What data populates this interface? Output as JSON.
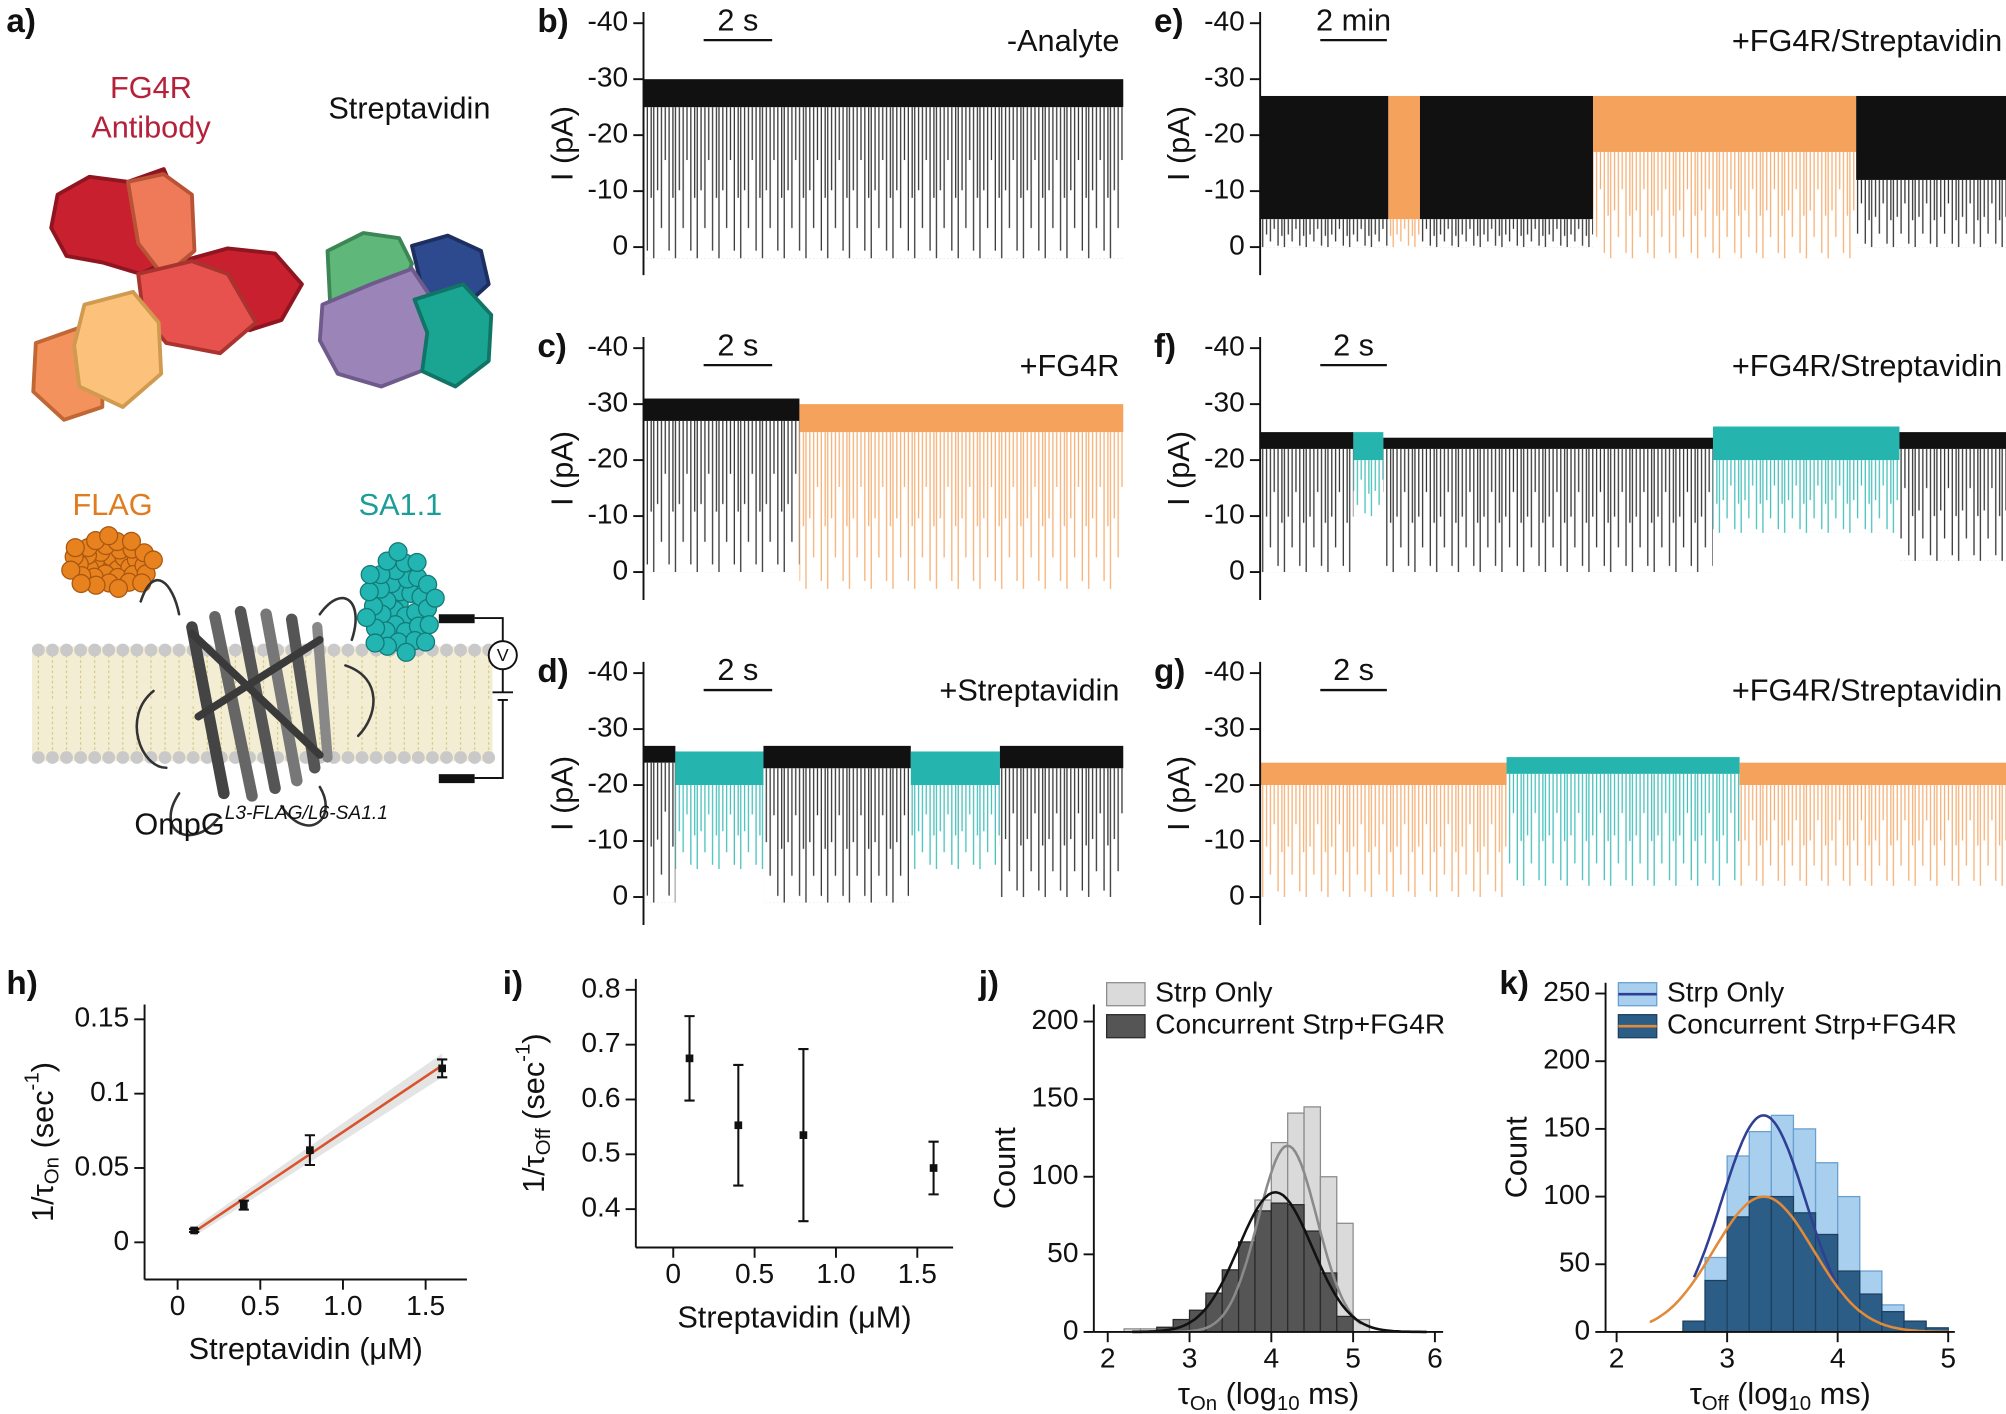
{
  "diagram": {
    "panel": "a)",
    "antibody_name": "FG4R",
    "antibody_label": "Antibody",
    "streptavidin": "Streptavidin",
    "flag": "FLAG",
    "sa": "SA1.1",
    "protein": "OmpG",
    "protein_sup": "L3-FLAG/L6-SA1.1",
    "voltage": "V"
  },
  "chart_data": [
    {
      "type": "trace",
      "panel": "b)",
      "label": "-Analyte",
      "ylabel": "I (pA)",
      "ylim": [
        5,
        -42
      ],
      "yticks": [
        -40,
        -30,
        -20,
        -10,
        0
      ],
      "xlim": [
        0,
        14
      ],
      "scale_bar": {
        "value": 2,
        "label": "2 s"
      },
      "segments": [
        {
          "color": "#111111",
          "x": [
            0,
            14
          ],
          "band": [
            -30,
            -25
          ],
          "deep": 2
        }
      ]
    },
    {
      "type": "trace",
      "panel": "c)",
      "label": "+FG4R",
      "ylabel": "I (pA)",
      "ylim": [
        5,
        -42
      ],
      "yticks": [
        -40,
        -30,
        -20,
        -10,
        0
      ],
      "xlim": [
        0,
        14
      ],
      "scale_bar": {
        "value": 2,
        "label": "2 s"
      },
      "segments": [
        {
          "color": "#111111",
          "x": [
            0,
            4.55
          ],
          "band": [
            -31,
            -27
          ],
          "deep": 0
        },
        {
          "color": "#f5a25d",
          "x": [
            4.55,
            14
          ],
          "band": [
            -30,
            -25
          ],
          "deep": 3
        }
      ]
    },
    {
      "type": "trace",
      "panel": "d)",
      "label": "+Streptavidin",
      "ylabel": "I (pA)",
      "ylim": [
        5,
        -42
      ],
      "yticks": [
        -40,
        -30,
        -20,
        -10,
        0
      ],
      "xlim": [
        0,
        14
      ],
      "scale_bar": {
        "value": 2,
        "label": "2 s"
      },
      "segments": [
        {
          "color": "#111111",
          "x": [
            0,
            0.93
          ],
          "band": [
            -27,
            -24
          ],
          "deep": 1
        },
        {
          "color": "#26b5ae",
          "x": [
            0.93,
            3.5
          ],
          "band": [
            -26,
            -20
          ],
          "deep": -5
        },
        {
          "color": "#111111",
          "x": [
            3.5,
            7.8
          ],
          "band": [
            -27,
            -23
          ],
          "deep": 1
        },
        {
          "color": "#26b5ae",
          "x": [
            7.8,
            10.4
          ],
          "band": [
            -26,
            -20
          ],
          "deep": -5
        },
        {
          "color": "#111111",
          "x": [
            10.4,
            14
          ],
          "band": [
            -27,
            -23
          ],
          "deep": 0
        }
      ]
    },
    {
      "type": "trace",
      "panel": "e)",
      "label": "+FG4R/Streptavidin",
      "ylabel": "I (pA)",
      "ylim": [
        5,
        -42
      ],
      "yticks": [
        -40,
        -30,
        -20,
        -10,
        0
      ],
      "xlim": [
        0,
        22.4
      ],
      "scale_bar": {
        "value": 2,
        "label": "2 min"
      },
      "segments": [
        {
          "color": "#111111",
          "x": [
            0,
            3.85
          ],
          "band": [
            -27,
            -5
          ],
          "deep": 0
        },
        {
          "color": "#f5a25d",
          "x": [
            3.85,
            4.8
          ],
          "band": [
            -27,
            -5
          ],
          "deep": 0
        },
        {
          "color": "#111111",
          "x": [
            4.8,
            10
          ],
          "band": [
            -27,
            -5
          ],
          "deep": 0
        },
        {
          "color": "#f5a25d",
          "x": [
            10,
            17.9
          ],
          "band": [
            -27,
            -17
          ],
          "deep": 2
        },
        {
          "color": "#111111",
          "x": [
            17.9,
            22.4
          ],
          "band": [
            -27,
            -12
          ],
          "deep": 0
        }
      ]
    },
    {
      "type": "trace",
      "panel": "f)",
      "label": "+FG4R/Streptavidin",
      "ylabel": "I (pA)",
      "ylim": [
        5,
        -42
      ],
      "yticks": [
        -40,
        -30,
        -20,
        -10,
        0
      ],
      "xlim": [
        0,
        22.4
      ],
      "scale_bar": {
        "value": 2,
        "label": "2 s"
      },
      "segments": [
        {
          "color": "#111111",
          "x": [
            0,
            2.8
          ],
          "band": [
            -25,
            -22
          ],
          "deep": 0
        },
        {
          "color": "#26b5ae",
          "x": [
            2.8,
            3.7
          ],
          "band": [
            -25,
            -20
          ],
          "deep": -10
        },
        {
          "color": "#111111",
          "x": [
            3.7,
            13.6
          ],
          "band": [
            -24,
            -22
          ],
          "deep": 0
        },
        {
          "color": "#26b5ae",
          "x": [
            13.6,
            19.2
          ],
          "band": [
            -26,
            -20
          ],
          "deep": -7
        },
        {
          "color": "#111111",
          "x": [
            19.2,
            22.4
          ],
          "band": [
            -25,
            -22
          ],
          "deep": -2
        }
      ]
    },
    {
      "type": "trace",
      "panel": "g)",
      "label": "+FG4R/Streptavidin",
      "ylabel": "I (pA)",
      "ylim": [
        5,
        -42
      ],
      "yticks": [
        -40,
        -30,
        -20,
        -10,
        0
      ],
      "xlim": [
        0,
        22.4
      ],
      "scale_bar": {
        "value": 2,
        "label": "2 s"
      },
      "segments": [
        {
          "color": "#f5a25d",
          "x": [
            0,
            7.4
          ],
          "band": [
            -24,
            -20
          ],
          "deep": 0
        },
        {
          "color": "#26b5ae",
          "x": [
            7.4,
            14.4
          ],
          "band": [
            -25,
            -22
          ],
          "deep": -2
        },
        {
          "color": "#f5a25d",
          "x": [
            14.4,
            22.4
          ],
          "band": [
            -24,
            -20
          ],
          "deep": -2
        }
      ]
    },
    {
      "type": "scatter",
      "panel": "h)",
      "xlabel": "Streptavidin (μM)",
      "ylabel": [
        {
          "text": "1/τ"
        },
        {
          "text": "On",
          "shift": "sub"
        },
        {
          "text": " (sec"
        },
        {
          "text": "-1",
          "shift": "sup"
        },
        {
          "text": ")"
        }
      ],
      "xlim": [
        -0.2,
        1.75
      ],
      "ylim": [
        -0.025,
        0.16
      ],
      "xticks": [
        0,
        0.5,
        {
          "value": 1,
          "label": "1.0"
        },
        1.5
      ],
      "yticks": [
        0,
        0.05,
        0.1,
        0.15
      ],
      "x": [
        0.1,
        0.4,
        0.8,
        1.6
      ],
      "values": [
        0.008,
        0.025,
        0.062,
        0.117
      ],
      "errors": [
        0.001,
        0.003,
        0.01,
        0.006
      ],
      "color": "#111111",
      "fit": {
        "x": [
          0.1,
          1.6
        ],
        "values": [
          0.007,
          0.119
        ],
        "band": [
          0.003,
          0.008
        ],
        "color": "#d9542b"
      }
    },
    {
      "type": "scatter",
      "panel": "i)",
      "xlabel": "Streptavidin (μM)",
      "ylabel": [
        {
          "text": "1/τ"
        },
        {
          "text": "Off",
          "shift": "sub"
        },
        {
          "text": " (sec"
        },
        {
          "text": "-1",
          "shift": "sup"
        },
        {
          "text": ")"
        }
      ],
      "xlim": [
        -0.23,
        1.72
      ],
      "ylim": [
        0.33,
        0.82
      ],
      "xticks": [
        0,
        0.5,
        {
          "value": 1,
          "label": "1.0"
        },
        1.5
      ],
      "yticks": [
        0.4,
        0.5,
        0.6,
        0.7,
        0.8
      ],
      "x": [
        0.1,
        0.4,
        0.8,
        1.6
      ],
      "values": [
        0.675,
        0.553,
        0.535,
        0.475
      ],
      "errors": [
        0.077,
        0.11,
        0.157,
        0.048
      ],
      "color": "#111111"
    },
    {
      "type": "histogram",
      "panel": "j)",
      "ylabel": "Count",
      "xlabel": [
        {
          "text": "τ"
        },
        {
          "text": "On",
          "shift": "sub"
        },
        {
          "text": " (log"
        },
        {
          "text": "10",
          "shift": "sub"
        },
        {
          "text": " ms)"
        }
      ],
      "xlim": [
        1.83,
        6.1
      ],
      "ylim": [
        0,
        211
      ],
      "xticks": [
        2,
        3,
        4,
        5,
        6
      ],
      "yticks": [
        0,
        50,
        100,
        150,
        200
      ],
      "bins": [
        2.2,
        2.4,
        2.6,
        2.8,
        3.0,
        3.2,
        3.4,
        3.6,
        3.8,
        4.0,
        4.2,
        4.4,
        4.6,
        4.8,
        5.0,
        5.2
      ],
      "legend": "top-left",
      "series": [
        {
          "name": "Strp Only",
          "color": "#dadada",
          "edge": "#8c8c8c",
          "values": [
            2,
            2,
            3,
            6,
            10,
            20,
            34,
            55,
            85,
            122,
            141,
            145,
            100,
            70,
            8
          ],
          "fit": {
            "center": 4.2,
            "sigma": 0.36,
            "amplitude": 120,
            "range": [
              2.3,
              5.1
            ],
            "color": "#8a8a8a"
          }
        },
        {
          "name": "Concurrent Strp+FG4R",
          "color": "#555555",
          "edge": "#2a2a2a",
          "values": [
            0,
            0,
            3,
            8,
            14,
            25,
            40,
            58,
            78,
            83,
            82,
            65,
            38,
            10,
            0
          ],
          "fit": {
            "center": 4.05,
            "sigma": 0.45,
            "amplitude": 90,
            "range": [
              2.3,
              5.9
            ],
            "color": "#111111"
          }
        }
      ]
    },
    {
      "type": "histogram",
      "panel": "k)",
      "ylabel": "Count",
      "xlabel": [
        {
          "text": "τ"
        },
        {
          "text": "Off",
          "shift": "sub"
        },
        {
          "text": " (log"
        },
        {
          "text": "10",
          "shift": "sub"
        },
        {
          "text": " ms)"
        }
      ],
      "xlim": [
        1.9,
        5.06
      ],
      "ylim": [
        0,
        258
      ],
      "xticks": [
        2,
        3,
        4,
        5
      ],
      "yticks": [
        0,
        50,
        100,
        150,
        200,
        250
      ],
      "bins": [
        2.2,
        2.4,
        2.6,
        2.8,
        3.0,
        3.2,
        3.4,
        3.6,
        3.8,
        4.0,
        4.2,
        4.4,
        4.6,
        4.8,
        5.0
      ],
      "legend": "top-left",
      "legend_lines": true,
      "series": [
        {
          "name": "Strp Only",
          "color": "#a8cfee",
          "edge": "#6a9fcf",
          "values": [
            0,
            0,
            0,
            55,
            130,
            148,
            160,
            150,
            125,
            100,
            45,
            20,
            8,
            3
          ],
          "fit": {
            "center": 3.33,
            "sigma": 0.38,
            "amplitude": 160,
            "range": [
              2.7,
              4.05
            ],
            "color": "#2e3f94"
          }
        },
        {
          "name": "Concurrent Strp+FG4R",
          "color": "#2b5d86",
          "edge": "#1d4060",
          "values": [
            0,
            0,
            8,
            38,
            85,
            100,
            100,
            88,
            72,
            45,
            28,
            15,
            8,
            3
          ],
          "fit": {
            "center": 3.33,
            "sigma": 0.45,
            "amplitude": 100,
            "range": [
              2.3,
              5.0
            ],
            "color": "#e08a3a"
          }
        }
      ]
    }
  ]
}
